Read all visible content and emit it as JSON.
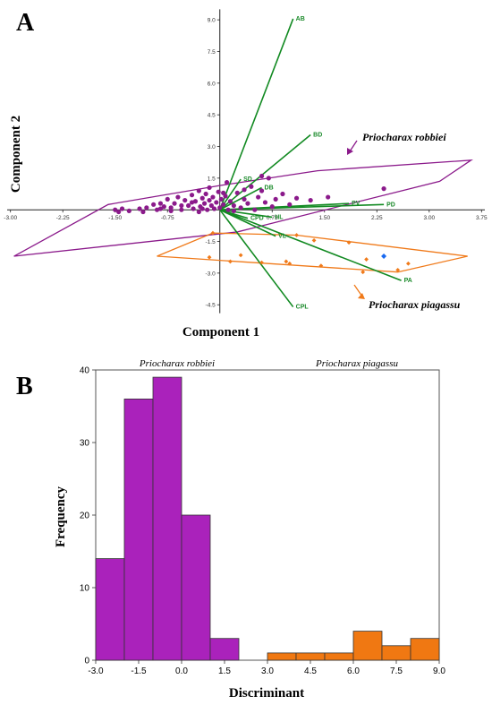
{
  "chart_data": [
    {
      "panel": "A",
      "type": "scatter",
      "xlabel": "Component 1",
      "ylabel": "Component 2",
      "xticks": [
        "-3.00",
        "-2.25",
        "-1.50",
        "-0.75",
        "0.75",
        "1.50",
        "2.25",
        "3.00",
        "3.75"
      ],
      "yticks": [
        "9.0",
        "7.5",
        "6.0",
        "4.5",
        "3.0",
        "1.5",
        "-1.5",
        "-3.0",
        "-4.5"
      ],
      "xlim": [
        -3.15,
        3.9
      ],
      "ylim": [
        -5.0,
        9.6
      ],
      "colors": {
        "robbiei": "#8b1a8b",
        "piagassu": "#f07a1a",
        "loadings": "#128a22",
        "outlier": "#1a6af0"
      },
      "series": [
        {
          "name": "Priocharax robbiei",
          "points": [
            [
              -1.5,
              0.0
            ],
            [
              -1.45,
              -0.1
            ],
            [
              -1.4,
              0.05
            ],
            [
              -1.3,
              -0.05
            ],
            [
              -1.15,
              0.05
            ],
            [
              -1.05,
              0.1
            ],
            [
              -0.95,
              0.25
            ],
            [
              -0.9,
              0.0
            ],
            [
              -0.85,
              0.3
            ],
            [
              -0.8,
              0.15
            ],
            [
              -0.75,
              0.5
            ],
            [
              -0.7,
              0.1
            ],
            [
              -0.65,
              0.3
            ],
            [
              -0.6,
              0.6
            ],
            [
              -0.55,
              0.0
            ],
            [
              -0.5,
              0.45
            ],
            [
              -0.45,
              0.2
            ],
            [
              -0.4,
              0.7
            ],
            [
              -0.38,
              0.05
            ],
            [
              -0.35,
              0.4
            ],
            [
              -0.3,
              0.9
            ],
            [
              -0.28,
              0.15
            ],
            [
              -0.25,
              0.55
            ],
            [
              -0.22,
              0.3
            ],
            [
              -0.2,
              0.75
            ],
            [
              -0.18,
              0.0
            ],
            [
              -0.15,
              0.45
            ],
            [
              -0.12,
              0.2
            ],
            [
              -0.1,
              0.6
            ],
            [
              -0.08,
              0.05
            ],
            [
              -0.05,
              0.35
            ],
            [
              -0.02,
              0.85
            ],
            [
              0.0,
              0.1
            ],
            [
              0.02,
              0.5
            ],
            [
              0.05,
              0.25
            ],
            [
              0.08,
              0.65
            ],
            [
              0.1,
              1.3
            ],
            [
              0.12,
              0.0
            ],
            [
              0.15,
              0.4
            ],
            [
              0.2,
              0.2
            ],
            [
              0.25,
              0.8
            ],
            [
              0.3,
              0.1
            ],
            [
              0.35,
              0.5
            ],
            [
              0.4,
              0.3
            ],
            [
              0.45,
              1.1
            ],
            [
              0.5,
              0.0
            ],
            [
              0.55,
              0.6
            ],
            [
              0.6,
              0.9
            ],
            [
              0.65,
              0.35
            ],
            [
              0.7,
              1.5
            ],
            [
              0.75,
              0.15
            ],
            [
              0.8,
              0.5
            ],
            [
              0.9,
              0.75
            ],
            [
              1.0,
              0.25
            ],
            [
              1.1,
              0.55
            ],
            [
              1.3,
              0.45
            ],
            [
              1.55,
              0.6
            ],
            [
              2.35,
              1.0
            ],
            [
              -1.1,
              -0.1
            ],
            [
              -0.7,
              -0.05
            ],
            [
              -0.3,
              -0.1
            ],
            [
              0.2,
              -0.05
            ],
            [
              -0.85,
              0.05
            ],
            [
              -0.55,
              0.2
            ],
            [
              -0.25,
              0.05
            ],
            [
              0.05,
              0.8
            ],
            [
              0.35,
              0.95
            ],
            [
              0.6,
              1.6
            ],
            [
              -0.4,
              0.35
            ],
            [
              -0.15,
              1.05
            ]
          ],
          "hull": [
            [
              -2.95,
              -2.2
            ],
            [
              -1.6,
              0.25
            ],
            [
              0.0,
              1.15
            ],
            [
              1.4,
              1.85
            ],
            [
              3.6,
              2.35
            ],
            [
              3.15,
              1.35
            ],
            [
              0.25,
              -1.05
            ]
          ]
        },
        {
          "name": "Priocharax piagassu",
          "points": [
            [
              1.1,
              -1.2
            ],
            [
              1.35,
              -1.45
            ],
            [
              1.85,
              -1.55
            ],
            [
              0.3,
              -2.15
            ],
            [
              1.0,
              -2.55
            ],
            [
              1.45,
              -2.65
            ],
            [
              2.1,
              -2.35
            ],
            [
              2.7,
              -2.55
            ],
            [
              2.55,
              -2.85
            ],
            [
              -0.15,
              -2.25
            ],
            [
              0.15,
              -2.45
            ],
            [
              0.6,
              -2.5
            ],
            [
              0.95,
              -2.45
            ],
            [
              -0.1,
              -1.1
            ],
            [
              2.05,
              -2.95
            ]
          ],
          "hull": [
            [
              -0.1,
              -1.1
            ],
            [
              1.1,
              -1.2
            ],
            [
              3.55,
              -2.2
            ],
            [
              2.55,
              -2.95
            ],
            [
              -0.9,
              -2.2
            ]
          ]
        }
      ],
      "outlier": [
        2.35,
        -2.2
      ],
      "loadings": [
        {
          "label": "AB",
          "end": [
            1.05,
            9.05
          ]
        },
        {
          "label": "BD",
          "end": [
            1.3,
            3.55
          ]
        },
        {
          "label": "SD",
          "end": [
            0.3,
            1.45
          ]
        },
        {
          "label": "DB",
          "end": [
            0.6,
            1.05
          ]
        },
        {
          "label": "PV",
          "end": [
            1.85,
            0.3
          ]
        },
        {
          "label": "PD",
          "end": [
            2.35,
            0.25
          ]
        },
        {
          "label": "CPD",
          "end": [
            0.4,
            -0.4
          ]
        },
        {
          "label": "HL",
          "end": [
            0.75,
            -0.35
          ]
        },
        {
          "label": "VL",
          "end": [
            0.8,
            -1.25
          ]
        },
        {
          "label": "PA",
          "end": [
            2.6,
            -3.35
          ]
        },
        {
          "label": "CPL",
          "end": [
            1.05,
            -4.6
          ]
        }
      ],
      "annotations": [
        "Priocharax robbiei",
        "Priocharax piagassu"
      ]
    },
    {
      "panel": "B",
      "type": "bar",
      "xlabel": "Discriminant",
      "ylabel": "Frequency",
      "xticks": [
        "-3.0",
        "-1.5",
        "0.0",
        "1.5",
        "3.0",
        "4.5",
        "6.0",
        "7.5",
        "9.0"
      ],
      "yticks": [
        "0",
        "10",
        "20",
        "30",
        "40"
      ],
      "ylim": [
        0,
        40
      ],
      "series": [
        {
          "name": "Priocharax robbiei",
          "color": "#aa22bb",
          "bins": [
            {
              "bin": 0,
              "value": 14
            },
            {
              "bin": 1,
              "value": 36
            },
            {
              "bin": 2,
              "value": 39
            },
            {
              "bin": 3,
              "value": 20
            },
            {
              "bin": 4,
              "value": 3
            }
          ]
        },
        {
          "name": "Priocharax piagassu",
          "color": "#f07812",
          "bins": [
            {
              "bin": 6,
              "value": 1
            },
            {
              "bin": 7,
              "value": 1
            },
            {
              "bin": 8,
              "value": 1
            },
            {
              "bin": 9,
              "value": 4
            },
            {
              "bin": 10,
              "value": 2
            },
            {
              "bin": 11,
              "value": 3
            }
          ]
        }
      ]
    }
  ],
  "labels": {
    "panel_a": "A",
    "panel_b": "B",
    "robbiei": "Priocharax robbiei",
    "piagassu": "Priocharax piagassu"
  }
}
